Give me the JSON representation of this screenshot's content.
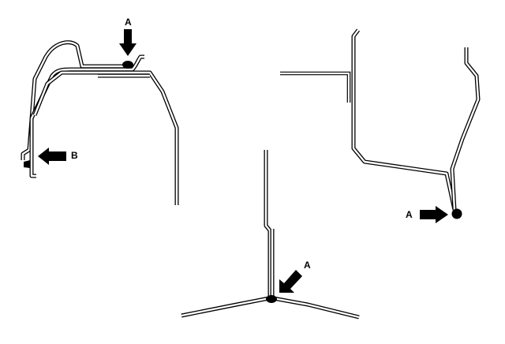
{
  "labels": {
    "fig1_top": "A",
    "fig1_left": "B",
    "fig2": "A",
    "fig3": "A"
  },
  "colors": {
    "line": "#000000",
    "background": "#ffffff"
  }
}
